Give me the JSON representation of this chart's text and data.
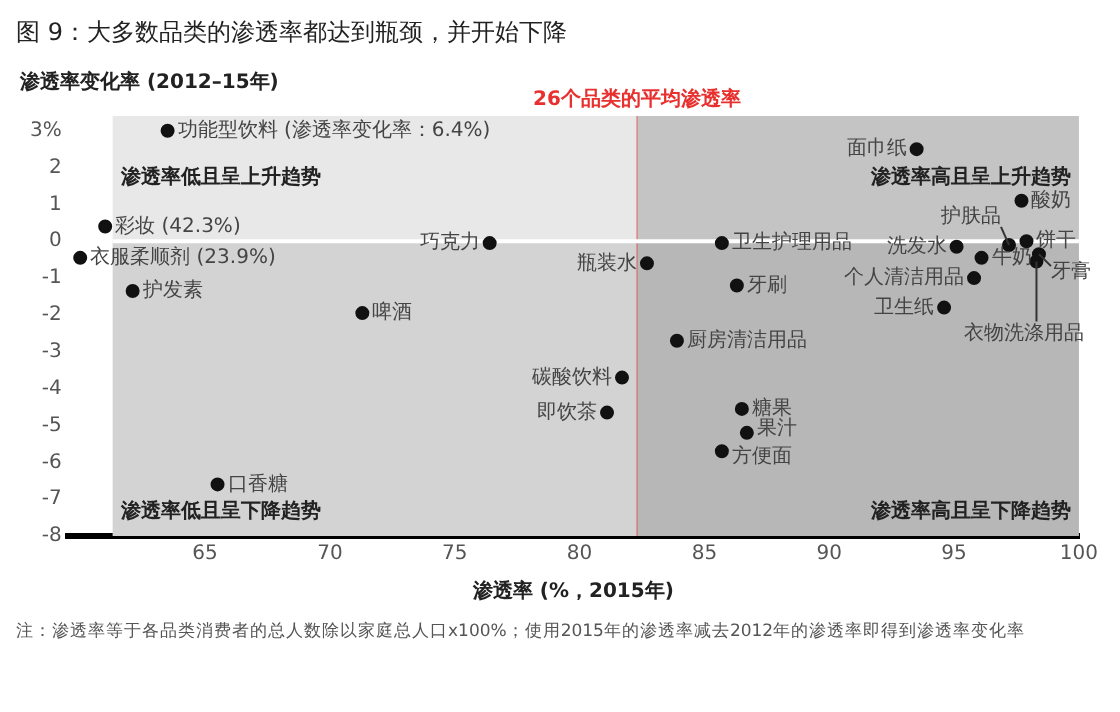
{
  "chart_data": {
    "type": "scatter",
    "title": "图 9：大多数品类的渗透率都达到瓶颈，并开始下降",
    "xlabel": "渗透率 (%，2015年)",
    "ylabel": "渗透率变化率 (2012–15年)",
    "x": [
      63.5,
      61,
      60,
      62.1,
      71.3,
      76.4,
      65.5,
      81.7,
      81.1,
      82.7,
      85.7,
      86.3,
      83.9,
      86.5,
      86.7,
      85.7,
      93.5,
      97.7,
      97.2,
      97.9,
      98.4,
      98.3,
      95.1,
      96.1,
      95.8,
      94.6
    ],
    "series": [
      {
        "color": "#111111",
        "values": [
          3,
          0.4,
          -0.45,
          -1.35,
          -1.95,
          -0.05,
          -6.6,
          -3.7,
          -4.65,
          -0.6,
          -0.05,
          -1.2,
          -2.7,
          -4.55,
          -5.2,
          -5.7,
          2.5,
          1.1,
          -0.1,
          0,
          -0.35,
          -0.55,
          -0.15,
          -0.45,
          -1,
          -1.8
        ]
      }
    ],
    "marker": "circle",
    "xlim": [
      59.5,
      100
    ],
    "ylim": [
      -8,
      3.4
    ],
    "xticks": [
      65,
      70,
      75,
      80,
      85,
      90,
      95,
      100
    ],
    "yticks": [
      {
        "value": 3,
        "label": "3%"
      },
      2,
      1,
      0,
      -1,
      -2,
      -3,
      -4,
      -5,
      -6,
      -7,
      -8
    ],
    "grid": false,
    "legend": false,
    "bands": [
      {
        "axis": "x",
        "from": 61.3,
        "to": 82.3,
        "color": "#e8e8e8"
      },
      {
        "axis": "x",
        "from": 82.3,
        "to": 100,
        "color": "#c4c4c4"
      },
      {
        "axis": "y",
        "from": -8,
        "to": 0,
        "color": "#888888"
      }
    ],
    "ref_lines": [
      {
        "axis": "x",
        "value": 82.3,
        "label": "26个品类的平均渗透率",
        "color": "#e8312f"
      },
      {
        "axis": "y",
        "value": 0,
        "color": "#ffffff"
      }
    ],
    "annotations": [
      {
        "text": "功能型饮料 (渗透率变化率：6.4%)",
        "x": 63.5,
        "y": 3
      },
      {
        "text": "彩妆 (42.3%)",
        "x": 61,
        "y": 0.4
      },
      {
        "text": "衣服柔顺剂 (23.9%)",
        "x": 60,
        "y": -0.45
      },
      {
        "text": "护发素",
        "x": 62.1,
        "y": -1.35
      },
      {
        "text": "啤酒",
        "x": 71.3,
        "y": -1.95
      },
      {
        "text": "巧克力",
        "x": 76.4,
        "y": -0.05
      },
      {
        "text": "口香糖",
        "x": 65.5,
        "y": -6.6
      },
      {
        "text": "碳酸饮料",
        "x": 81.7,
        "y": -3.7
      },
      {
        "text": "即饮茶",
        "x": 81.1,
        "y": -4.65
      },
      {
        "text": "瓶装水",
        "x": 82.7,
        "y": -0.6
      },
      {
        "text": "卫生护理用品",
        "x": 85.7,
        "y": -0.05
      },
      {
        "text": "牙刷",
        "x": 86.3,
        "y": -1.2
      },
      {
        "text": "厨房清洁用品",
        "x": 83.9,
        "y": -2.7
      },
      {
        "text": "糖果",
        "x": 86.5,
        "y": -4.55
      },
      {
        "text": "果汁",
        "x": 86.7,
        "y": -5.2
      },
      {
        "text": "方便面",
        "x": 85.7,
        "y": -5.7
      },
      {
        "text": "面巾纸",
        "x": 93.5,
        "y": 2.5
      },
      {
        "text": "酸奶",
        "x": 97.7,
        "y": 1.1
      },
      {
        "text": "护肤品",
        "x": 97.2,
        "y": -0.1
      },
      {
        "text": "饼干",
        "x": 97.9,
        "y": 0
      },
      {
        "text": "牙膏",
        "x": 98.4,
        "y": -0.35
      },
      {
        "text": "衣物洗涤用品",
        "x": 98.3,
        "y": -0.55
      },
      {
        "text": "洗发水",
        "x": 95.1,
        "y": -0.15
      },
      {
        "text": "牛奶",
        "x": 96.1,
        "y": -0.45
      },
      {
        "text": "个人清洁用品",
        "x": 95.8,
        "y": -1
      },
      {
        "text": "卫生纸",
        "x": 94.6,
        "y": -1.8
      },
      "渗透率低且呈上升趋势",
      "渗透率高且呈上升趋势",
      "渗透率低且呈下降趋势",
      "渗透率高且呈下降趋势",
      "注：渗透率等于各品类消费者的总人数除以家庭总人口x100%；使用2015年的渗透率减去2012年的渗透率即得到渗透率变化率"
    ]
  }
}
